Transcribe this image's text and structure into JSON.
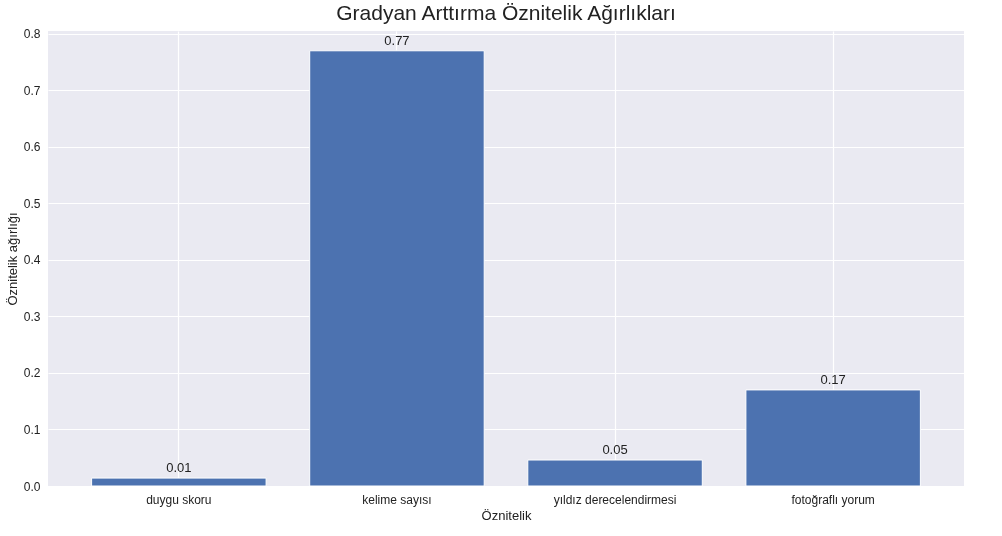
{
  "chart_data": {
    "type": "bar",
    "title": "Gradyan Arttırma Öznitelik Ağırlıkları",
    "xlabel": "Öznitelik",
    "ylabel": "Öznitelik ağırlığı",
    "categories": [
      "duygu skoru",
      "kelime sayısı",
      "yıldız derecelendirmesi",
      "fotoğraflı yorum"
    ],
    "values": [
      0.014,
      0.77,
      0.046,
      0.17
    ],
    "value_labels": [
      "0.01",
      "0.77",
      "0.05",
      "0.17"
    ],
    "color": "#4c72b0",
    "ylim": [
      0,
      0.805
    ],
    "yticks": [
      {
        "value": 0,
        "label": "0.0"
      },
      0.1,
      0.2,
      0.3,
      0.4,
      0.5,
      0.6,
      0.7,
      0.8
    ],
    "grid": true
  }
}
